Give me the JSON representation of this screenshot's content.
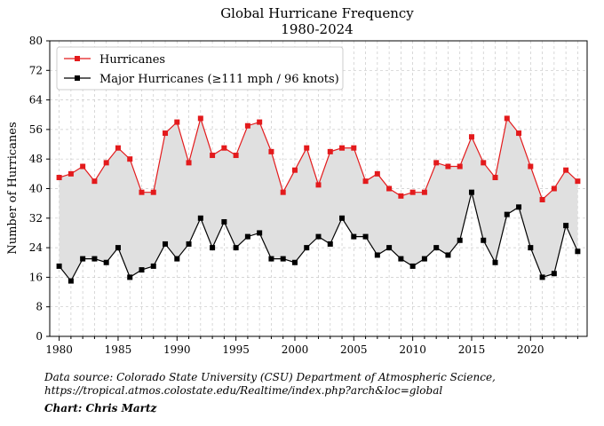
{
  "chart_data": {
    "type": "line",
    "title": "Global Hurricane Frequency",
    "subtitle": "1980-2024",
    "xlabel": "",
    "ylabel": "Number of Hurricanes",
    "ylim": [
      0,
      80
    ],
    "yticks": [
      0,
      8,
      16,
      24,
      32,
      40,
      48,
      56,
      64,
      72,
      80
    ],
    "xticks": [
      1980,
      1985,
      1990,
      1995,
      2000,
      2005,
      2010,
      2015,
      2020
    ],
    "xlim": [
      1979.2,
      2024.8
    ],
    "grid": true,
    "legend_position": "top-left",
    "shaded_between_series": true,
    "x": [
      1980,
      1981,
      1982,
      1983,
      1984,
      1985,
      1986,
      1987,
      1988,
      1989,
      1990,
      1991,
      1992,
      1993,
      1994,
      1995,
      1996,
      1997,
      1998,
      1999,
      2000,
      2001,
      2002,
      2003,
      2004,
      2005,
      2006,
      2007,
      2008,
      2009,
      2010,
      2011,
      2012,
      2013,
      2014,
      2015,
      2016,
      2017,
      2018,
      2019,
      2020,
      2021,
      2022,
      2023,
      2024
    ],
    "series": [
      {
        "name": "Hurricanes",
        "color": "#e31a1c",
        "values": [
          43,
          44,
          46,
          42,
          47,
          51,
          48,
          39,
          39,
          55,
          58,
          47,
          59,
          49,
          51,
          49,
          57,
          58,
          50,
          39,
          45,
          51,
          41,
          50,
          51,
          51,
          42,
          44,
          40,
          38,
          39,
          39,
          47,
          46,
          46,
          54,
          47,
          43,
          59,
          55,
          46,
          37,
          40,
          45,
          42
        ]
      },
      {
        "name": "Major Hurricanes (≥111 mph / 96 knots)",
        "color": "#000000",
        "values": [
          19,
          15,
          21,
          21,
          20,
          24,
          16,
          18,
          19,
          25,
          21,
          25,
          32,
          24,
          31,
          24,
          27,
          28,
          21,
          21,
          20,
          24,
          27,
          25,
          32,
          27,
          27,
          22,
          24,
          21,
          19,
          21,
          24,
          22,
          26,
          39,
          26,
          20,
          33,
          35,
          24,
          16,
          17,
          30,
          23
        ]
      }
    ]
  },
  "footer": {
    "source_line1": "Data source: Colorado State University (CSU) Department of Atmospheric Science,",
    "source_line2": "https://tropical.atmos.colostate.edu/Realtime/index.php?arch&loc=global",
    "credit": "Chart: Chris Martz"
  }
}
